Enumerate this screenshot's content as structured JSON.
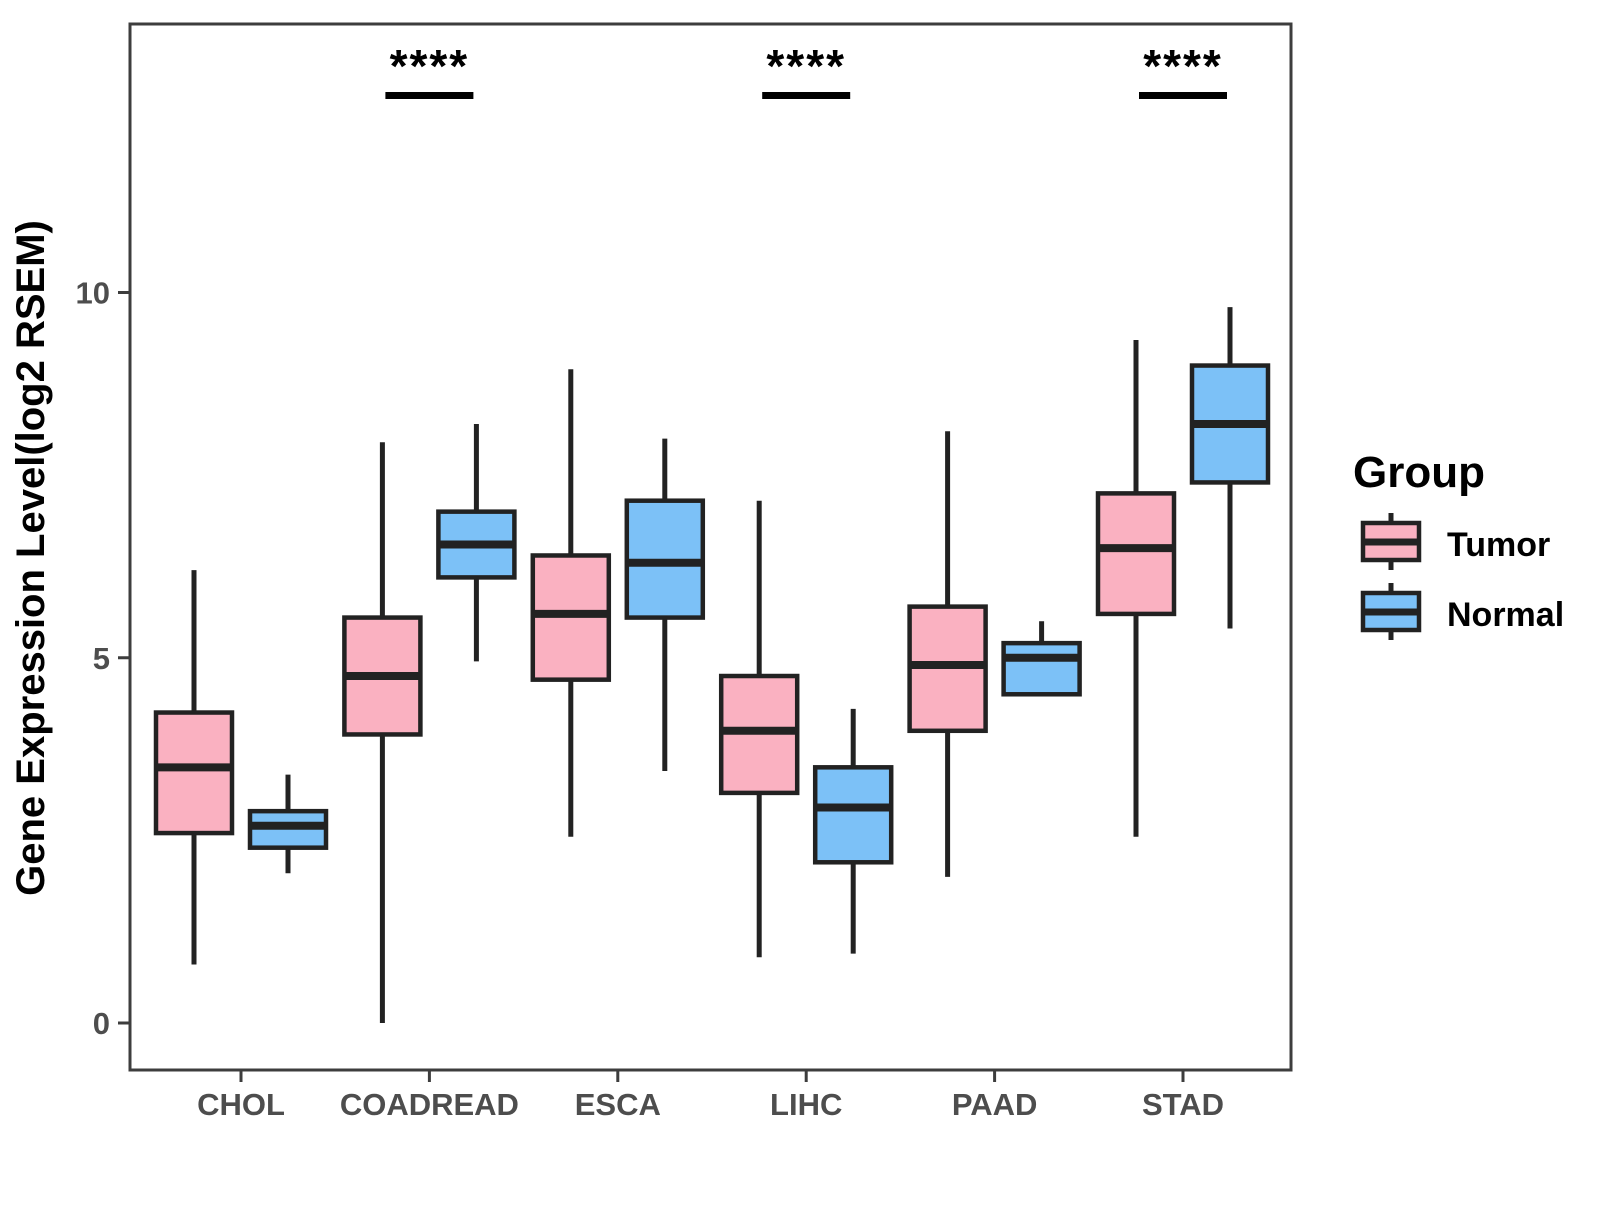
{
  "figure": {
    "background": "#ffffff"
  },
  "chart_data": {
    "type": "grouped_boxplot",
    "title": "",
    "xlabel": "",
    "ylabel": "Gene Expression Level(log2 RSEM)",
    "ylim": [
      -0.65,
      13.7
    ],
    "y_ticks": [
      0,
      5,
      10
    ],
    "y_tick_labels": [
      "0",
      "5",
      "10"
    ],
    "grid": "off",
    "categories": [
      "CHOL",
      "COADREAD",
      "ESCA",
      "LIHC",
      "PAAD",
      "STAD"
    ],
    "stat_keys": [
      "whisker_low",
      "q1",
      "median",
      "q3",
      "whisker_high"
    ],
    "series": [
      {
        "name": "Tumor",
        "color": "#FAB1C1",
        "boxes": {
          "CHOL": [
            0.8,
            2.6,
            3.5,
            4.25,
            6.2
          ],
          "COADREAD": [
            0.0,
            3.95,
            4.75,
            5.55,
            7.95
          ],
          "ESCA": [
            2.55,
            4.7,
            5.6,
            6.4,
            8.95
          ],
          "LIHC": [
            0.9,
            3.15,
            4.0,
            4.75,
            7.15
          ],
          "PAAD": [
            2.0,
            4.0,
            4.9,
            5.7,
            8.1
          ],
          "STAD": [
            2.55,
            5.6,
            6.5,
            7.25,
            9.35
          ]
        }
      },
      {
        "name": "Normal",
        "color": "#7CC1F7",
        "boxes": {
          "CHOL": [
            2.05,
            2.4,
            2.7,
            2.9,
            3.4
          ],
          "COADREAD": [
            4.95,
            6.1,
            6.55,
            7.0,
            8.2
          ],
          "ESCA": [
            3.45,
            5.55,
            6.3,
            7.15,
            8.0
          ],
          "LIHC": [
            0.95,
            2.2,
            2.95,
            3.5,
            4.3
          ],
          "PAAD": [
            4.5,
            4.5,
            5.0,
            5.2,
            5.5
          ],
          "STAD": [
            5.4,
            7.4,
            8.2,
            9.0,
            9.8
          ]
        }
      }
    ],
    "significance": [
      {
        "category": "COADREAD",
        "label": "****"
      },
      {
        "category": "LIHC",
        "label": "****"
      },
      {
        "category": "STAD",
        "label": "****"
      }
    ],
    "legend": {
      "title": "Group",
      "position": "right",
      "entries": [
        {
          "label": "Tumor",
          "color": "#FAB1C1"
        },
        {
          "label": "Normal",
          "color": "#7CC1F7"
        }
      ]
    },
    "style": {
      "box_border_color": "#222222",
      "panel_border_color": "#3d3d3d",
      "tick_label_color": "#4d4d4d",
      "axis_title_color": "#000000",
      "significance_color": "#000000"
    }
  }
}
